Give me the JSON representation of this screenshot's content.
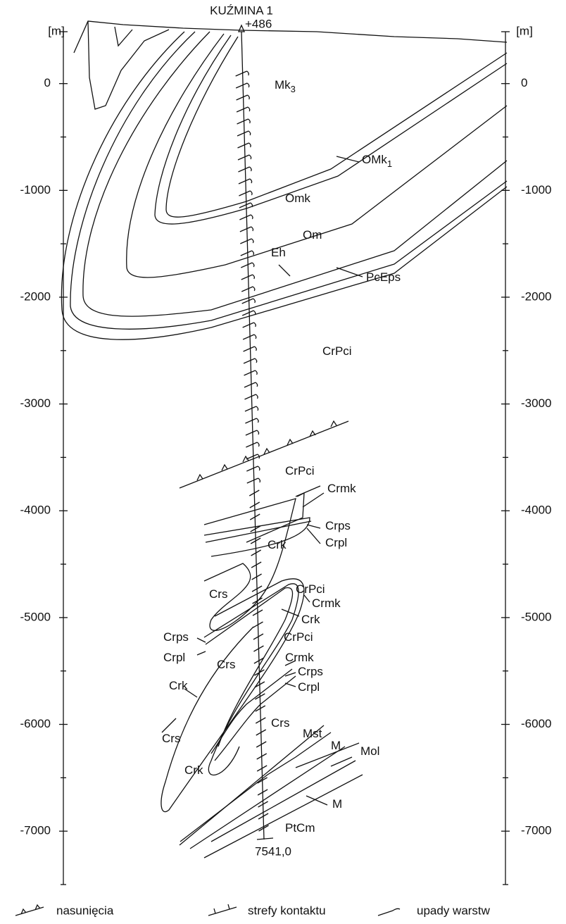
{
  "header": {
    "well_name": "KUŹMINA 1",
    "elevation": "+486"
  },
  "depth_axis": {
    "unit": "[m]",
    "range": [
      -7500,
      486
    ],
    "ticks": [
      0,
      -1000,
      -2000,
      -3000,
      -4000,
      -5000,
      -6000,
      -7000
    ],
    "minor_ticks": [
      -500,
      -1500,
      -2500,
      -3500,
      -4500,
      -5500,
      -6500,
      -7500
    ]
  },
  "well_depth_label": "7541,0",
  "formations": [
    {
      "text": "Mk",
      "sub": "3"
    },
    {
      "text": "OMk",
      "sub": "1"
    },
    {
      "text": "Omk"
    },
    {
      "text": "Om"
    },
    {
      "text": "Eh"
    },
    {
      "text": "PcEps"
    },
    {
      "text": "CrPci"
    },
    {
      "text": "CrPci"
    },
    {
      "text": "Crmk"
    },
    {
      "text": "Crps"
    },
    {
      "text": "Crpl"
    },
    {
      "text": "Crk"
    },
    {
      "text": "CrPci"
    },
    {
      "text": "Crs"
    },
    {
      "text": "Crmk"
    },
    {
      "text": "Crk"
    },
    {
      "text": "Crps"
    },
    {
      "text": "CrPci"
    },
    {
      "text": "Crpl"
    },
    {
      "text": "Crs"
    },
    {
      "text": "Crmk"
    },
    {
      "text": "Crps"
    },
    {
      "text": "Crpl"
    },
    {
      "text": "Crk"
    },
    {
      "text": "Crs"
    },
    {
      "text": "Crs"
    },
    {
      "text": "Mst"
    },
    {
      "text": "M"
    },
    {
      "text": "Mol"
    },
    {
      "text": "Crk"
    },
    {
      "text": "M"
    },
    {
      "text": "PtCm"
    }
  ],
  "legend": [
    "nasunięcia",
    "strefy kontaktu",
    "upady warstw"
  ]
}
